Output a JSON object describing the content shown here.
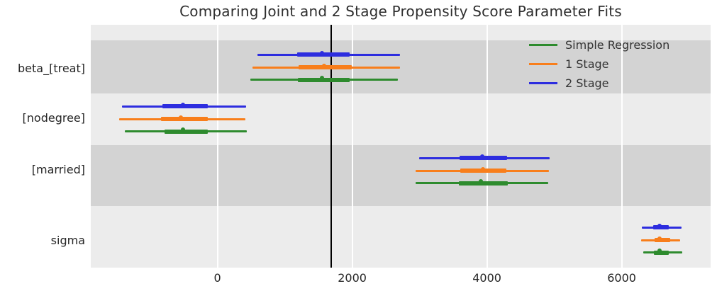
{
  "chart_data": {
    "type": "forest",
    "title": "Comparing Joint and 2 Stage Propensity Score Parameter Fits",
    "xlabel": "",
    "xlim": [
      -1880,
      7320
    ],
    "x_ticks": [
      0,
      2000,
      4000,
      6000
    ],
    "x_tick_labels": [
      "0",
      "2000",
      "4000",
      "6000"
    ],
    "grid": "vertical-white-gridlines",
    "legend_position": "upper right",
    "reference_line": {
      "x": 1690,
      "color": "#000000"
    },
    "interval_semantics": "thin line = wide credible interval, thick line = interquartile range, white dot = point estimate",
    "background": {
      "figure": "#ffffff",
      "plot": "#ececec",
      "band_dark": "#d3d3d3"
    },
    "series_order_top_to_bottom": [
      "2 Stage",
      "1 Stage",
      "Simple Regression"
    ],
    "legend": {
      "entries": [
        {
          "label": "Simple Regression",
          "color": "#2e8b2e"
        },
        {
          "label": "1 Stage",
          "color": "#f87e1b"
        },
        {
          "label": "2 Stage",
          "color": "#2d2ddf"
        }
      ]
    },
    "parameters": [
      {
        "label": "beta_[treat]",
        "series": [
          {
            "name": "2 Stage",
            "color": "#2d2ddf",
            "median": 1580,
            "ci": [
              590,
              2705
            ],
            "iqr": [
              1180,
              1960
            ]
          },
          {
            "name": "1 Stage",
            "color": "#f87e1b",
            "median": 1610,
            "ci": [
              515,
              2705
            ],
            "iqr": [
              1200,
              1990
            ]
          },
          {
            "name": "Simple Regression",
            "color": "#2e8b2e",
            "median": 1580,
            "ci": [
              485,
              2675
            ],
            "iqr": [
              1190,
              1960
            ]
          }
        ]
      },
      {
        "label": "[nodegree]",
        "series": [
          {
            "name": "2 Stage",
            "color": "#2d2ddf",
            "median": -485,
            "ci": [
              -1420,
              430
            ],
            "iqr": [
              -820,
              -145
            ]
          },
          {
            "name": "1 Stage",
            "color": "#f87e1b",
            "median": -515,
            "ci": [
              -1455,
              410
            ],
            "iqr": [
              -840,
              -145
            ]
          },
          {
            "name": "Simple Regression",
            "color": "#2e8b2e",
            "median": -485,
            "ci": [
              -1380,
              440
            ],
            "iqr": [
              -790,
              -145
            ]
          }
        ]
      },
      {
        "label": "[married]",
        "series": [
          {
            "name": "2 Stage",
            "color": "#2d2ddf",
            "median": 3960,
            "ci": [
              2990,
              4935
            ],
            "iqr": [
              3590,
              4295
            ]
          },
          {
            "name": "1 Stage",
            "color": "#f87e1b",
            "median": 3970,
            "ci": [
              2945,
              4925
            ],
            "iqr": [
              3600,
              4285
            ]
          },
          {
            "name": "Simple Regression",
            "color": "#2e8b2e",
            "median": 3935,
            "ci": [
              2945,
              4905
            ],
            "iqr": [
              3580,
              4305
            ]
          }
        ]
      },
      {
        "label": "sigma",
        "series": [
          {
            "name": "2 Stage",
            "color": "#2d2ddf",
            "median": 6590,
            "ci": [
              6295,
              6885
            ],
            "iqr": [
              6465,
              6695
            ]
          },
          {
            "name": "1 Stage",
            "color": "#f87e1b",
            "median": 6590,
            "ci": [
              6285,
              6865
            ],
            "iqr": [
              6485,
              6715
            ]
          },
          {
            "name": "Simple Regression",
            "color": "#2e8b2e",
            "median": 6590,
            "ci": [
              6325,
              6895
            ],
            "iqr": [
              6475,
              6695
            ]
          }
        ]
      }
    ]
  }
}
